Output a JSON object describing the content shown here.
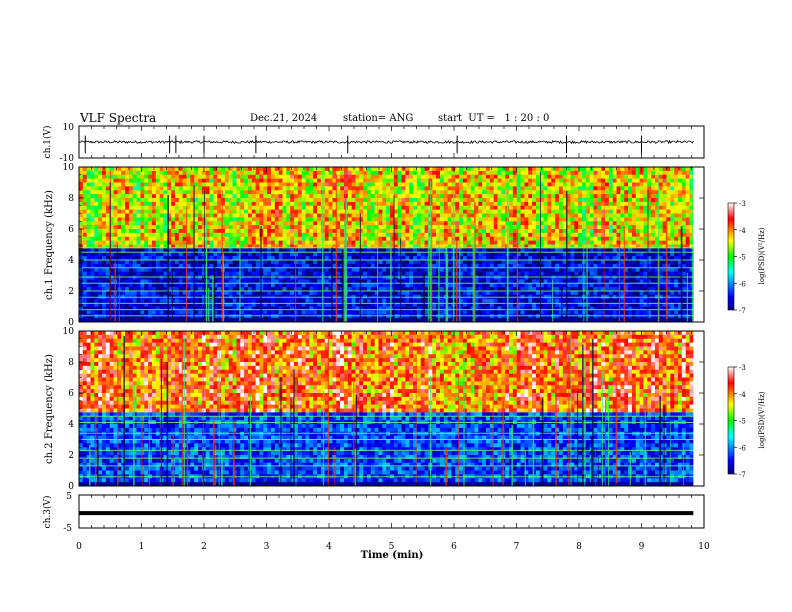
{
  "header": {
    "title": "VLF Spectra",
    "date": "Dec.21, 2024",
    "station": "station= ANG",
    "start": "start  UT =   1 : 20 : 0"
  },
  "chart_data": [
    {
      "type": "line",
      "panel": "ch1-waveform",
      "ylabel": "ch.1(V)",
      "yticks": [
        "10",
        "-10"
      ],
      "ylim": [
        -10,
        10
      ],
      "xlim": [
        0,
        10
      ],
      "x_end": 9.83,
      "baseline": 0,
      "spike_times": [
        0.1,
        1.45,
        1.55,
        2.0,
        2.83,
        4.3,
        6.05,
        7.8,
        9.0
      ]
    },
    {
      "type": "heatmap",
      "panel": "ch1-spectrogram",
      "ylabel": "ch.1 Frequency (kHz)",
      "yticks": [
        "0",
        "2",
        "4",
        "6",
        "8",
        "10"
      ],
      "ylim": [
        0,
        10
      ],
      "xlim": [
        0,
        10
      ],
      "x_end": 9.83,
      "colorbar_label": "log(PSD)(V²/Hz)",
      "colorbar_ticks": [
        "-3",
        "-4",
        "-5",
        "-6",
        "-7"
      ],
      "colorbar_range": [
        -7,
        -3
      ],
      "line_freqs": [
        0.4,
        0.8,
        1.2,
        1.6,
        2.0,
        2.5,
        2.9,
        3.5,
        4.0,
        4.5,
        4.8
      ],
      "level_upper": -4.8,
      "level_lower": -6.6
    },
    {
      "type": "heatmap",
      "panel": "ch2-spectrogram",
      "ylabel": "ch.2 Frequency (kHz)",
      "yticks": [
        "0",
        "2",
        "4",
        "6",
        "8",
        "10"
      ],
      "ylim": [
        0,
        10
      ],
      "xlim": [
        0,
        10
      ],
      "x_end": 9.83,
      "colorbar_label": "log(PSD)(V²/Hz)",
      "colorbar_ticks": [
        "-3",
        "-4",
        "-5",
        "-6",
        "-7"
      ],
      "colorbar_range": [
        -7,
        -3
      ],
      "line_freqs": [
        0.6,
        1.3,
        1.8,
        2.3,
        3.0,
        3.4,
        4.1,
        4.5
      ],
      "level_upper": -4.3,
      "level_lower": -6.3
    },
    {
      "type": "line",
      "panel": "ch3-waveform",
      "ylabel": "ch.3(V)",
      "yticks": [
        "5",
        "-5"
      ],
      "ylim": [
        -5,
        5
      ],
      "xlim": [
        0,
        10
      ],
      "x_end": 9.83,
      "baseline": -0.5
    }
  ],
  "xaxis": {
    "label": "Time (min)",
    "ticks": [
      "0",
      "1",
      "2",
      "3",
      "4",
      "5",
      "6",
      "7",
      "8",
      "9",
      "10"
    ]
  }
}
